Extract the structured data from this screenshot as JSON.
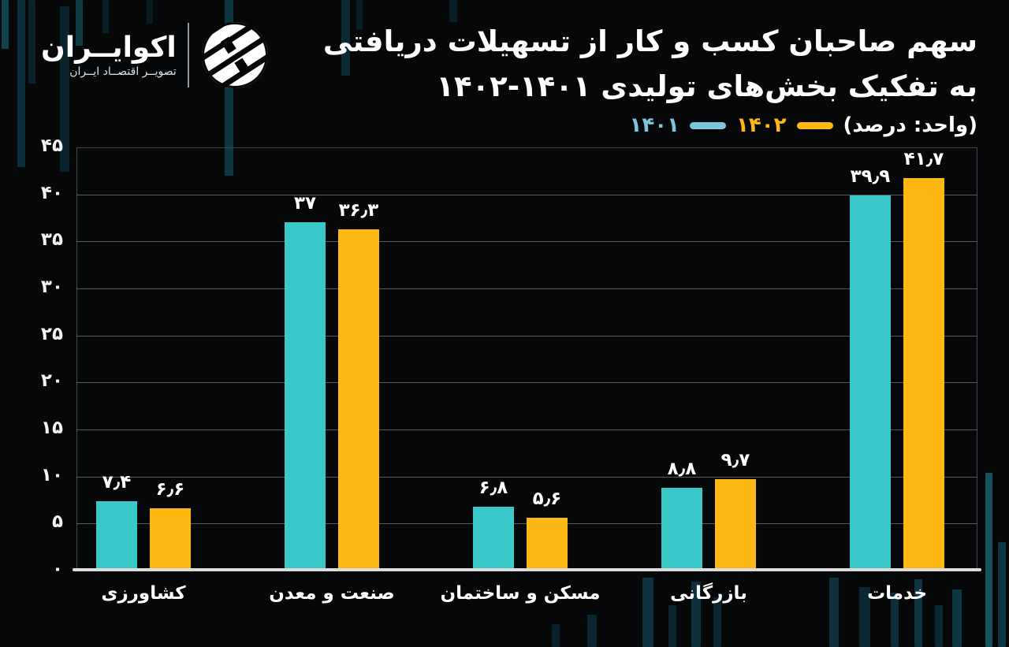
{
  "header": {
    "logo": {
      "brand": "اکوایــران",
      "tagline": "تصویــر اقتصــاد ایــران"
    },
    "title_line1": "سهم صاحبان کسب و کار از تسهیلات دریافتی",
    "title_line2": "به تفکیک بخش‌های تولیدی ۱۴۰۱-۱۴۰۲"
  },
  "legend": {
    "unit_label": "(واحد: درصد)",
    "series": [
      {
        "label": "۱۴۰۲",
        "color": "#FDB813"
      },
      {
        "label": "۱۴۰۱",
        "color": "#7CC5DB"
      }
    ]
  },
  "colors": {
    "bar_1401": "#3AC8C9",
    "bar_1402": "#FDB813",
    "background": "#060708",
    "gridline": "#585B5D",
    "axis_line": "#DCDCDC"
  },
  "chart_data": {
    "type": "bar",
    "title": "سهم صاحبان کسب و کار از تسهیلات دریافتی به تفکیک بخش‌های تولیدی ۱۴۰۱-۱۴۰۲",
    "unit": "درصد",
    "categories": [
      "کشاورزی",
      "صنعت و معدن",
      "مسکن و ساختمان",
      "بازرگانی",
      "خدمات"
    ],
    "series": [
      {
        "name": "۱۴۰۱",
        "color": "#3AC8C9",
        "values": [
          7.4,
          37,
          6.8,
          8.8,
          39.9
        ],
        "value_labels": [
          "۷٫۴",
          "۳۷",
          "۶٫۸",
          "۸٫۸",
          "۳۹٫۹"
        ]
      },
      {
        "name": "۱۴۰۲",
        "color": "#FDB813",
        "values": [
          6.6,
          36.3,
          5.6,
          9.7,
          41.7
        ],
        "value_labels": [
          "۶٫۶",
          "۳۶٫۳",
          "۵٫۶",
          "۹٫۷",
          "۴۱٫۷"
        ]
      }
    ],
    "ylim": [
      0,
      45
    ],
    "ytick_step": 5,
    "ytick_labels": [
      "۰",
      "۵",
      "۱۰",
      "۱۵",
      "۲۰",
      "۲۵",
      "۳۰",
      "۳۵",
      "۴۰",
      "۴۵"
    ],
    "grid": true,
    "legend_position": "top-right"
  }
}
